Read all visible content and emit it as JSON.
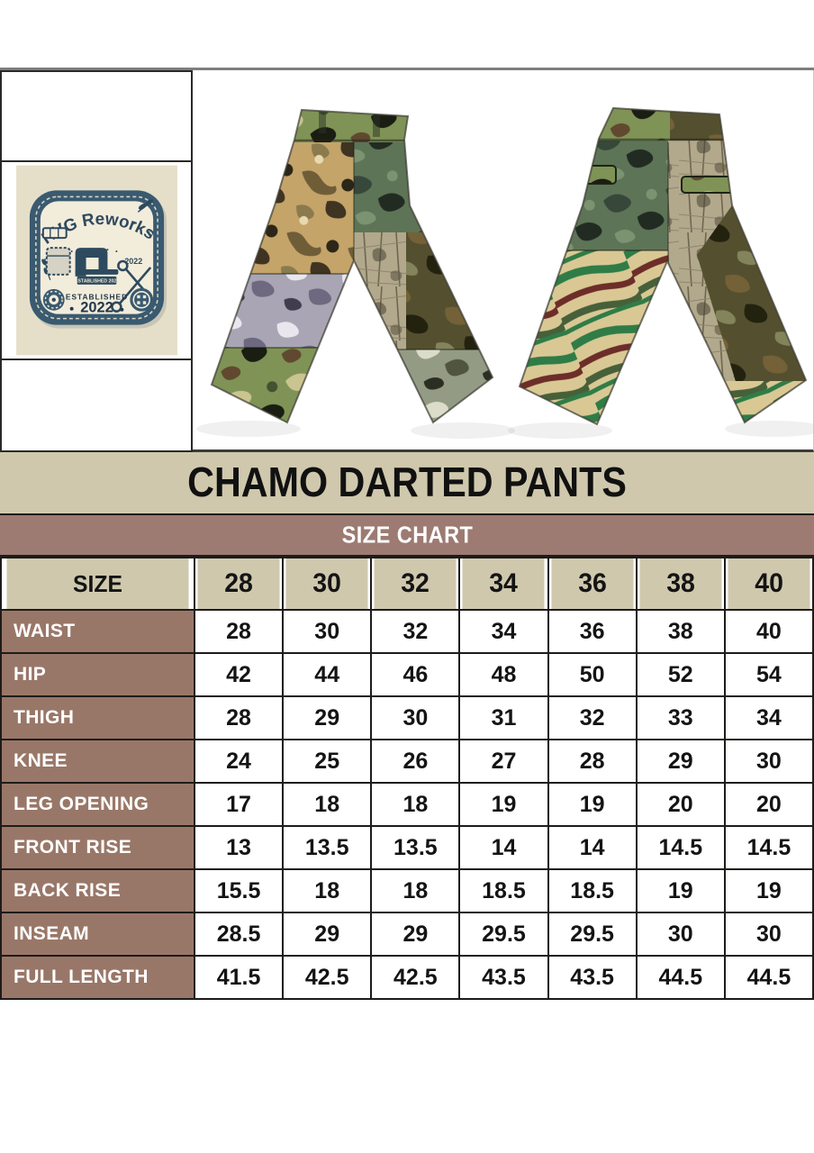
{
  "title": "CHAMO DARTED PANTS",
  "logo_patch": {
    "brand": "RVG Reworks",
    "year_center": "2022",
    "tiny_label": "ESTABLISHED 2022",
    "established_line": "ESTABLISHED",
    "established_year": "2022"
  },
  "size_chart": {
    "heading": "SIZE CHART",
    "size_label": "SIZE",
    "sizes": [
      "28",
      "30",
      "32",
      "34",
      "36",
      "38",
      "40"
    ],
    "rows": [
      {
        "label": "WAIST",
        "values": [
          "28",
          "30",
          "32",
          "34",
          "36",
          "38",
          "40"
        ]
      },
      {
        "label": "HIP",
        "values": [
          "42",
          "44",
          "46",
          "48",
          "50",
          "52",
          "54"
        ]
      },
      {
        "label": "THIGH",
        "values": [
          "28",
          "29",
          "30",
          "31",
          "32",
          "33",
          "34"
        ]
      },
      {
        "label": "KNEE",
        "values": [
          "24",
          "25",
          "26",
          "27",
          "28",
          "29",
          "30"
        ]
      },
      {
        "label": "LEG OPENING",
        "values": [
          "17",
          "18",
          "18",
          "19",
          "19",
          "20",
          "20"
        ]
      },
      {
        "label": "FRONT RISE",
        "values": [
          "13",
          "13.5",
          "13.5",
          "14",
          "14",
          "14.5",
          "14.5"
        ]
      },
      {
        "label": "BACK RISE",
        "values": [
          "15.5",
          "18",
          "18",
          "18.5",
          "18.5",
          "19",
          "19"
        ]
      },
      {
        "label": "INSEAM",
        "values": [
          "28.5",
          "29",
          "29",
          "29.5",
          "29.5",
          "30",
          "30"
        ]
      },
      {
        "label": "FULL LENGTH",
        "values": [
          "41.5",
          "42.5",
          "42.5",
          "43.5",
          "43.5",
          "44.5",
          "44.5"
        ]
      }
    ]
  },
  "colors": {
    "beige_bar": "#cfc8ad",
    "size_chart_bar": "#9d7b72",
    "row_label": "#997768",
    "table_border": "#1d1c1a",
    "patch_navy": "#3a5a70",
    "patch_cream": "#f2ecdb",
    "logo_photo_bg": "#e5dfca"
  }
}
